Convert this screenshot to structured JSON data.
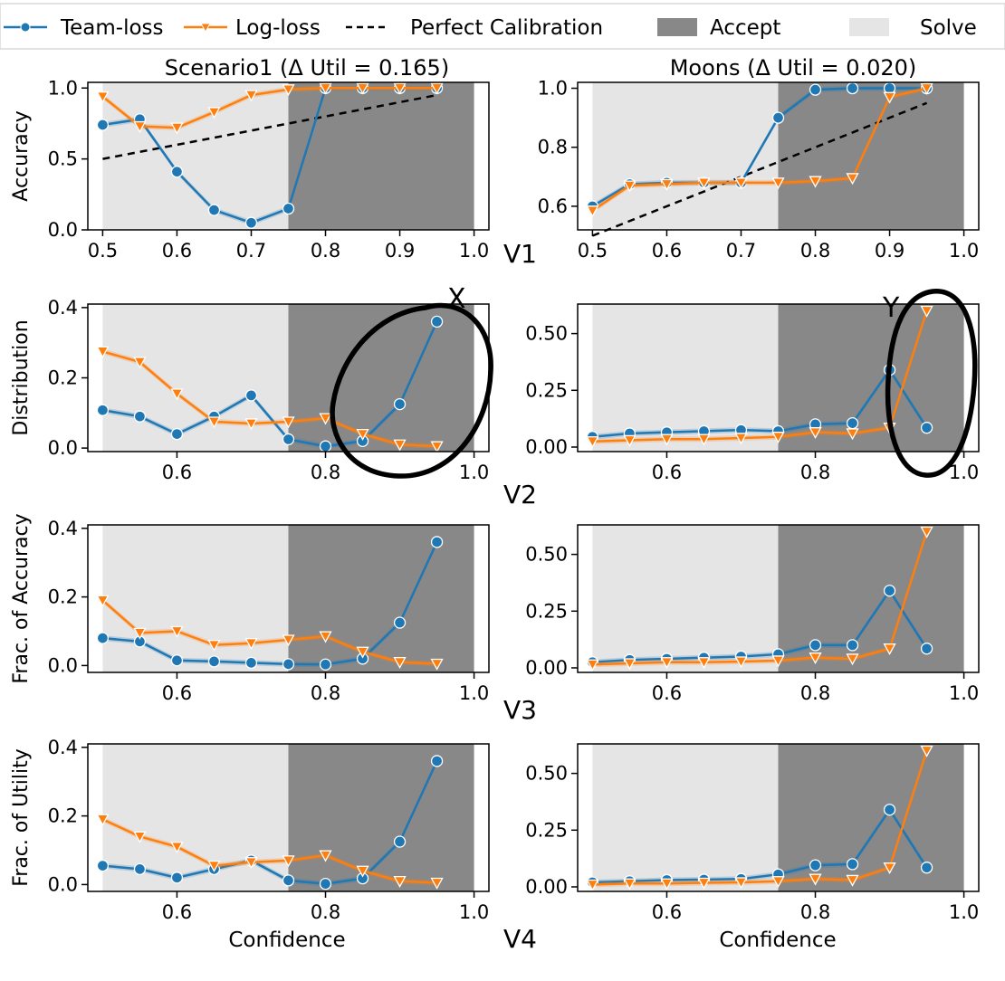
{
  "legend": [
    {
      "label": "Team-loss",
      "kind": "line-circle",
      "color": "#1f77b4"
    },
    {
      "label": "Log-loss",
      "kind": "line-triangle",
      "color": "#ff7f0e"
    },
    {
      "label": "Perfect Calibration",
      "kind": "dashed",
      "color": "#000000"
    },
    {
      "label": "Accept",
      "kind": "patch",
      "color": "#888888"
    },
    {
      "label": "Solve",
      "kind": "patch",
      "color": "#e5e5e5"
    }
  ],
  "columns": [
    {
      "title": "Scenario1 (Δ Util = 0.165)"
    },
    {
      "title": "Moons (Δ Util = 0.020)"
    }
  ],
  "row_labels": [
    "V1",
    "V2",
    "V3",
    "V4"
  ],
  "xlabel": "Confidence",
  "annotations": [
    {
      "text": "X",
      "panel": "left-row2"
    },
    {
      "text": "Y",
      "panel": "right-row2"
    }
  ],
  "chart_data": [
    {
      "type": "line",
      "panel": "Scenario1 / Accuracy",
      "ylabel": "Accuracy",
      "xlim": [
        0.48,
        1.02
      ],
      "ylim": [
        0.0,
        1.04
      ],
      "xticks": [
        "0.5",
        "0.6",
        "0.7",
        "0.8",
        "0.9",
        "1.0"
      ],
      "yticks": [
        "0.0",
        "0.5",
        "1.0"
      ],
      "regions": {
        "solve": [
          0.5,
          0.75
        ],
        "accept": [
          0.75,
          1.0
        ]
      },
      "calibration": [
        [
          0.5,
          0.5
        ],
        [
          0.95,
          0.95
        ]
      ],
      "x": [
        0.5,
        0.55,
        0.6,
        0.65,
        0.7,
        0.75,
        0.8,
        0.85,
        0.9,
        0.95
      ],
      "series": [
        {
          "name": "Team-loss",
          "values": [
            0.74,
            0.78,
            0.41,
            0.14,
            0.05,
            0.15,
            1.0,
            1.0,
            1.0,
            1.0
          ]
        },
        {
          "name": "Log-loss",
          "values": [
            0.94,
            0.73,
            0.72,
            0.83,
            0.95,
            0.99,
            1.0,
            1.0,
            1.0,
            1.0
          ]
        }
      ]
    },
    {
      "type": "line",
      "panel": "Moons / Accuracy",
      "ylabel": "",
      "xlim": [
        0.48,
        1.02
      ],
      "ylim": [
        0.52,
        1.02
      ],
      "xticks": [
        "0.5",
        "0.6",
        "0.7",
        "0.8",
        "0.9",
        "1.0"
      ],
      "yticks": [
        "0.6",
        "0.8",
        "1.0"
      ],
      "regions": {
        "solve": [
          0.5,
          0.75
        ],
        "accept": [
          0.75,
          1.0
        ]
      },
      "calibration": [
        [
          0.5,
          0.5
        ],
        [
          0.95,
          0.95
        ]
      ],
      "x": [
        0.5,
        0.55,
        0.6,
        0.65,
        0.7,
        0.75,
        0.8,
        0.85,
        0.9,
        0.95
      ],
      "series": [
        {
          "name": "Team-loss",
          "values": [
            0.6,
            0.675,
            0.68,
            0.68,
            0.68,
            0.9,
            0.995,
            1.0,
            1.0,
            1.0
          ]
        },
        {
          "name": "Log-loss",
          "values": [
            0.585,
            0.67,
            0.675,
            0.68,
            0.68,
            0.68,
            0.685,
            0.695,
            0.97,
            1.0
          ]
        }
      ]
    },
    {
      "type": "line",
      "panel": "Scenario1 / Distribution",
      "ylabel": "Distribution",
      "xlim": [
        0.48,
        1.02
      ],
      "ylim": [
        -0.01,
        0.41
      ],
      "xticks": [
        "0.6",
        "0.8",
        "1.0"
      ],
      "yticks": [
        "0.0",
        "0.2",
        "0.4"
      ],
      "regions": {
        "solve": [
          0.5,
          0.75
        ],
        "accept": [
          0.75,
          1.0
        ]
      },
      "x": [
        0.5,
        0.55,
        0.6,
        0.65,
        0.7,
        0.75,
        0.8,
        0.85,
        0.9,
        0.95
      ],
      "series": [
        {
          "name": "Team-loss",
          "values": [
            0.108,
            0.09,
            0.04,
            0.09,
            0.15,
            0.025,
            0.005,
            0.02,
            0.125,
            0.36
          ]
        },
        {
          "name": "Log-loss",
          "values": [
            0.275,
            0.245,
            0.155,
            0.075,
            0.07,
            0.075,
            0.085,
            0.04,
            0.01,
            0.005
          ]
        }
      ]
    },
    {
      "type": "line",
      "panel": "Moons / Distribution",
      "ylabel": "",
      "xlim": [
        0.48,
        1.02
      ],
      "ylim": [
        -0.02,
        0.63
      ],
      "xticks": [
        "0.6",
        "0.8",
        "1.0"
      ],
      "yticks": [
        "0.00",
        "0.25",
        "0.50"
      ],
      "regions": {
        "solve": [
          0.5,
          0.75
        ],
        "accept": [
          0.75,
          1.0
        ]
      },
      "x": [
        0.5,
        0.55,
        0.6,
        0.65,
        0.7,
        0.75,
        0.8,
        0.85,
        0.9,
        0.95
      ],
      "series": [
        {
          "name": "Team-loss",
          "values": [
            0.045,
            0.06,
            0.065,
            0.07,
            0.075,
            0.07,
            0.1,
            0.105,
            0.34,
            0.085
          ]
        },
        {
          "name": "Log-loss",
          "values": [
            0.025,
            0.03,
            0.035,
            0.035,
            0.04,
            0.045,
            0.065,
            0.06,
            0.085,
            0.6
          ]
        }
      ]
    },
    {
      "type": "line",
      "panel": "Scenario1 / Frac. of Accuracy",
      "ylabel": "Frac. of Accuracy",
      "xlim": [
        0.48,
        1.02
      ],
      "ylim": [
        -0.02,
        0.41
      ],
      "xticks": [
        "0.6",
        "0.8",
        "1.0"
      ],
      "yticks": [
        "0.0",
        "0.2",
        "0.4"
      ],
      "regions": {
        "solve": [
          0.5,
          0.75
        ],
        "accept": [
          0.75,
          1.0
        ]
      },
      "x": [
        0.5,
        0.55,
        0.6,
        0.65,
        0.7,
        0.75,
        0.8,
        0.85,
        0.9,
        0.95
      ],
      "series": [
        {
          "name": "Team-loss",
          "values": [
            0.08,
            0.07,
            0.015,
            0.012,
            0.008,
            0.004,
            0.003,
            0.02,
            0.125,
            0.36
          ]
        },
        {
          "name": "Log-loss",
          "values": [
            0.19,
            0.095,
            0.1,
            0.06,
            0.065,
            0.075,
            0.085,
            0.04,
            0.01,
            0.005
          ]
        }
      ]
    },
    {
      "type": "line",
      "panel": "Moons / Frac. of Accuracy",
      "ylabel": "",
      "xlim": [
        0.48,
        1.02
      ],
      "ylim": [
        -0.02,
        0.63
      ],
      "xticks": [
        "0.6",
        "0.8",
        "1.0"
      ],
      "yticks": [
        "0.00",
        "0.25",
        "0.50"
      ],
      "regions": {
        "solve": [
          0.5,
          0.75
        ],
        "accept": [
          0.75,
          1.0
        ]
      },
      "x": [
        0.5,
        0.55,
        0.6,
        0.65,
        0.7,
        0.75,
        0.8,
        0.85,
        0.9,
        0.95
      ],
      "series": [
        {
          "name": "Team-loss",
          "values": [
            0.025,
            0.035,
            0.04,
            0.045,
            0.05,
            0.06,
            0.1,
            0.1,
            0.34,
            0.085
          ]
        },
        {
          "name": "Log-loss",
          "values": [
            0.015,
            0.02,
            0.025,
            0.025,
            0.028,
            0.032,
            0.045,
            0.04,
            0.085,
            0.6
          ]
        }
      ]
    },
    {
      "type": "line",
      "panel": "Scenario1 / Frac. of Utility",
      "ylabel": "Frac. of Utility",
      "xlim": [
        0.48,
        1.02
      ],
      "ylim": [
        -0.02,
        0.41
      ],
      "xticks": [
        "0.6",
        "0.8",
        "1.0"
      ],
      "yticks": [
        "0.0",
        "0.2",
        "0.4"
      ],
      "regions": {
        "solve": [
          0.5,
          0.75
        ],
        "accept": [
          0.75,
          1.0
        ]
      },
      "x": [
        0.5,
        0.55,
        0.6,
        0.65,
        0.7,
        0.75,
        0.8,
        0.85,
        0.9,
        0.95
      ],
      "series": [
        {
          "name": "Team-loss",
          "values": [
            0.055,
            0.045,
            0.02,
            0.045,
            0.07,
            0.012,
            0.002,
            0.018,
            0.125,
            0.36
          ]
        },
        {
          "name": "Log-loss",
          "values": [
            0.19,
            0.14,
            0.11,
            0.055,
            0.065,
            0.07,
            0.085,
            0.04,
            0.01,
            0.005
          ]
        }
      ]
    },
    {
      "type": "line",
      "panel": "Moons / Frac. of Utility",
      "ylabel": "",
      "xlim": [
        0.48,
        1.02
      ],
      "ylim": [
        -0.02,
        0.63
      ],
      "xticks": [
        "0.6",
        "0.8",
        "1.0"
      ],
      "yticks": [
        "0.00",
        "0.25",
        "0.50"
      ],
      "regions": {
        "solve": [
          0.5,
          0.75
        ],
        "accept": [
          0.75,
          1.0
        ]
      },
      "x": [
        0.5,
        0.55,
        0.6,
        0.65,
        0.7,
        0.75,
        0.8,
        0.85,
        0.9,
        0.95
      ],
      "series": [
        {
          "name": "Team-loss",
          "values": [
            0.02,
            0.025,
            0.03,
            0.032,
            0.035,
            0.055,
            0.095,
            0.1,
            0.34,
            0.085
          ]
        },
        {
          "name": "Log-loss",
          "values": [
            0.01,
            0.015,
            0.015,
            0.018,
            0.02,
            0.025,
            0.035,
            0.03,
            0.085,
            0.6
          ]
        }
      ]
    }
  ]
}
